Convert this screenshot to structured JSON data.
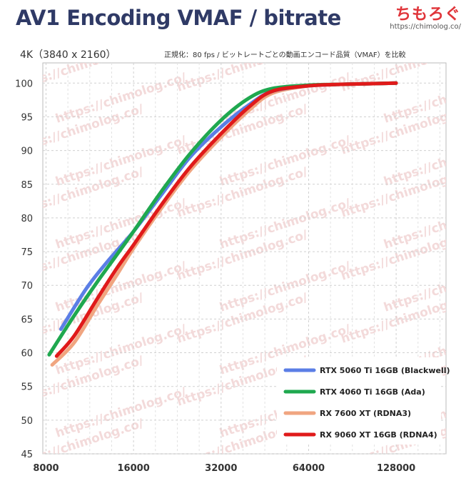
{
  "brand": {
    "name": "ちもろぐ",
    "url": "https://chimolog.co/"
  },
  "chart_data": {
    "type": "line",
    "title": "AV1 Encoding VMAF / bitrate",
    "subtitle": "4K（3840 x 2160）",
    "note": "正規化：80 fps / ビットレートごとの動画エンコード品質（VMAF）を比較",
    "xlabel": "",
    "ylabel": "",
    "xscale": "log2",
    "xlim": [
      7800,
      190000
    ],
    "ylim": [
      45,
      103
    ],
    "xticks": [
      8000,
      16000,
      32000,
      64000,
      128000
    ],
    "xtick_labels": [
      "8000",
      "16000",
      "32000",
      "64000",
      "128000"
    ],
    "yticks": [
      45,
      50,
      55,
      60,
      65,
      70,
      75,
      80,
      85,
      90,
      95,
      100
    ],
    "ytick_labels": [
      "45",
      "50",
      "55",
      "60",
      "65",
      "70",
      "75",
      "80",
      "85",
      "90",
      "95",
      "100"
    ],
    "grid": true,
    "legend_position": "bottom-right",
    "watermark": "https://chimolog.co/",
    "series": [
      {
        "name": "RTX 5060 Ti 16GB (Blackwell)",
        "color": "#5b7ee6",
        "x": [
          9000,
          11000,
          13000,
          16000,
          20000,
          25000,
          32000,
          40000,
          48000,
          64000,
          80000,
          100000,
          128000
        ],
        "y": [
          63.5,
          69.5,
          73.5,
          78.0,
          83.5,
          89.0,
          93.5,
          96.8,
          98.8,
          99.6,
          99.8,
          99.9,
          100.0
        ]
      },
      {
        "name": "RTX 4060 Ti 16GB (Ada)",
        "color": "#1fa84f",
        "x": [
          8200,
          10000,
          12000,
          14000,
          16000,
          20000,
          25000,
          32000,
          40000,
          48000,
          64000,
          80000,
          100000,
          128000
        ],
        "y": [
          59.7,
          65.5,
          70.5,
          74.5,
          78.0,
          84.0,
          89.5,
          94.5,
          97.8,
          99.2,
          99.7,
          99.8,
          99.9,
          100.0
        ]
      },
      {
        "name": "RX 7600 XT (RDNA3)",
        "color": "#f0a580",
        "x": [
          8400,
          10000,
          12000,
          14000,
          16000,
          20000,
          25000,
          32000,
          40000,
          48000,
          64000,
          80000,
          100000,
          128000
        ],
        "y": [
          58.2,
          61.5,
          67.0,
          71.5,
          75.5,
          81.5,
          87.0,
          92.0,
          96.0,
          98.5,
          99.6,
          99.8,
          99.9,
          100.0
        ]
      },
      {
        "name": "RX 9060 XT 16GB (RDNA4)",
        "color": "#e01a1a",
        "x": [
          8700,
          10000,
          12000,
          14000,
          16000,
          20000,
          25000,
          32000,
          40000,
          48000,
          64000,
          80000,
          100000,
          128000
        ],
        "y": [
          59.5,
          62.5,
          68.0,
          72.5,
          76.0,
          82.0,
          87.5,
          92.5,
          96.5,
          98.8,
          99.6,
          99.8,
          99.9,
          100.0
        ]
      }
    ]
  }
}
